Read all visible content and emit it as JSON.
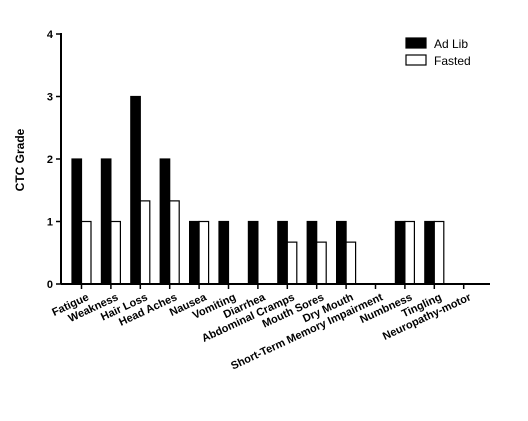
{
  "chart_data": {
    "type": "bar",
    "title": "",
    "xlabel": "",
    "ylabel": "CTC Grade",
    "ylim": [
      0,
      4
    ],
    "yticks": [
      "0",
      "1",
      "2",
      "3",
      "4"
    ],
    "grid": false,
    "legend_position": "top-right",
    "categories": [
      "Fatigue",
      "Weakness",
      "Hair Loss",
      "Head Aches",
      "Nausea",
      "Vomiting",
      "Diarrhea",
      "Abdominal Cramps",
      "Mouth Sores",
      "Dry Mouth",
      "Short-Term Memory Impairment",
      "Numbness",
      "Tingling",
      "Neuropathy-motor"
    ],
    "series": [
      {
        "name": "Ad Lib",
        "color": "#000000",
        "values": [
          2,
          2,
          3,
          2,
          1,
          1,
          1,
          1,
          1,
          1,
          0,
          1,
          1,
          0
        ]
      },
      {
        "name": "Fasted",
        "color": "#ffffff",
        "values": [
          1,
          1,
          1.33,
          1.33,
          1,
          0,
          0,
          0.67,
          0.67,
          0.67,
          0,
          1,
          1,
          0
        ]
      }
    ]
  }
}
